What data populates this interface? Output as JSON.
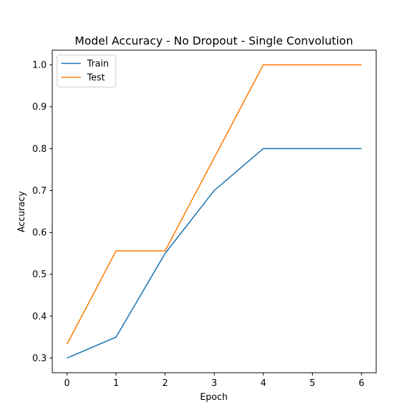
{
  "chart_data": {
    "type": "line",
    "title": "Model Accuracy - No Dropout - Single Convolution",
    "xlabel": "Epoch",
    "ylabel": "Accuracy",
    "x": [
      0,
      1,
      2,
      3,
      4,
      5,
      6
    ],
    "xticks": [
      0,
      1,
      2,
      3,
      4,
      5,
      6
    ],
    "yticks": [
      0.3,
      0.4,
      0.5,
      0.6,
      0.7,
      0.8,
      0.9,
      1.0
    ],
    "xlim": [
      -0.3,
      6.3
    ],
    "ylim": [
      0.265,
      1.035
    ],
    "grid": false,
    "legend_position": "upper-left",
    "series": [
      {
        "name": "Train",
        "color": "#1f77b4",
        "values": [
          0.3,
          0.35,
          0.55,
          0.7,
          0.8,
          0.8,
          0.8
        ]
      },
      {
        "name": "Test",
        "color": "#ff7f0e",
        "values": [
          0.333,
          0.556,
          0.556,
          0.778,
          1.0,
          1.0,
          1.0
        ]
      }
    ]
  }
}
